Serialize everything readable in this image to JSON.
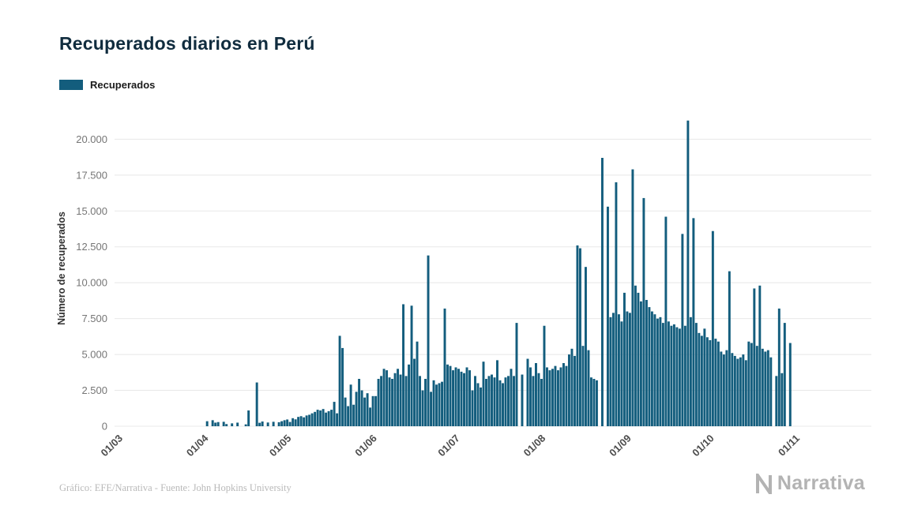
{
  "page": {
    "background": "#ffffff"
  },
  "header": {
    "title": "Recuperados diarios en Perú"
  },
  "legend": {
    "label": "Recuperados",
    "color": "#135d7d"
  },
  "footer": {
    "credit": "Gráfico: EFE/Narrativa - Fuente: John Hopkins University",
    "logo_text": "Narrativa"
  },
  "chart_data": {
    "type": "bar",
    "title": "Recuperados diarios en Perú",
    "xlabel": "",
    "ylabel": "Número de recuperados",
    "ylim": [
      0,
      22000
    ],
    "ytick_step": 2500,
    "ytick_max": 20000,
    "grid": true,
    "legend_position": "top-left",
    "bar_color": "#135d7d",
    "series_name": "Recuperados",
    "trailing_empty_days": 26,
    "x_tick_labels": [
      "01/03",
      "01/04",
      "01/05",
      "01/06",
      "01/07",
      "01/08",
      "01/09",
      "01/10",
      "01/11"
    ],
    "months": [
      {
        "tick": "01/03",
        "values": [
          0,
          0,
          0,
          0,
          0,
          0,
          0,
          0,
          0,
          0,
          0,
          0,
          0,
          0,
          0,
          0,
          0,
          0,
          0,
          0,
          0,
          0,
          0,
          0,
          0,
          0,
          0,
          0,
          0,
          0,
          0
        ]
      },
      {
        "tick": "01/04",
        "values": [
          350,
          0,
          420,
          250,
          290,
          0,
          310,
          150,
          0,
          200,
          0,
          250,
          0,
          0,
          130,
          1100,
          0,
          0,
          3050,
          240,
          330,
          0,
          260,
          0,
          310,
          0,
          280,
          350,
          420,
          470
        ]
      },
      {
        "tick": "01/05",
        "values": [
          300,
          560,
          480,
          650,
          700,
          620,
          750,
          800,
          900,
          1000,
          1150,
          1100,
          1200,
          950,
          1050,
          1150,
          1700,
          900,
          6300,
          5450,
          2000,
          1400,
          2900,
          1500,
          2400,
          3300,
          2500,
          2000,
          2300,
          1300,
          2100
        ]
      },
      {
        "tick": "01/06",
        "values": [
          2100,
          3300,
          3500,
          4000,
          3900,
          3400,
          3300,
          3700,
          4000,
          3600,
          8500,
          3500,
          4300,
          8400,
          4700,
          5900,
          3500,
          2500,
          3300,
          11900,
          2400,
          3200,
          2900,
          3000,
          3100,
          8200,
          4300,
          4200,
          3900,
          4100
        ]
      },
      {
        "tick": "01/07",
        "values": [
          4000,
          3800,
          3700,
          4100,
          3900,
          2500,
          3500,
          3000,
          2700,
          4500,
          3300,
          3500,
          3600,
          3400,
          4600,
          3200,
          3000,
          3400,
          3500,
          4000,
          3500,
          7200,
          0,
          3600,
          0,
          4700,
          4100,
          3500,
          4400,
          3700,
          3300
        ]
      },
      {
        "tick": "01/08",
        "values": [
          7000,
          4100,
          3900,
          4000,
          4200,
          3900,
          4100,
          4400,
          4200,
          5000,
          5400,
          4900,
          12600,
          12400,
          5600,
          11100,
          5300,
          3400,
          3300,
          3200,
          0,
          18700,
          0,
          15300,
          7600,
          7900,
          17000,
          7800,
          7300,
          9300,
          8000
        ]
      },
      {
        "tick": "01/09",
        "values": [
          7900,
          17900,
          9800,
          9300,
          8700,
          15900,
          8800,
          8300,
          8000,
          7800,
          7500,
          7600,
          7200,
          14600,
          7300,
          7000,
          7100,
          6900,
          6800,
          13400,
          7000,
          21300,
          7600,
          14500,
          7200,
          6500,
          6300,
          6800,
          6200,
          6000
        ]
      },
      {
        "tick": "01/10",
        "values": [
          13600,
          6100,
          5900,
          5200,
          5000,
          5300,
          10800,
          5100,
          4900,
          4700,
          4800,
          5000,
          4600,
          5900,
          5800,
          9600,
          5600,
          9800,
          5400,
          5200,
          5300,
          4800,
          0,
          3500,
          8200,
          3700,
          7200,
          0,
          5800,
          0,
          0
        ]
      },
      {
        "tick": "01/11",
        "values": []
      }
    ]
  }
}
